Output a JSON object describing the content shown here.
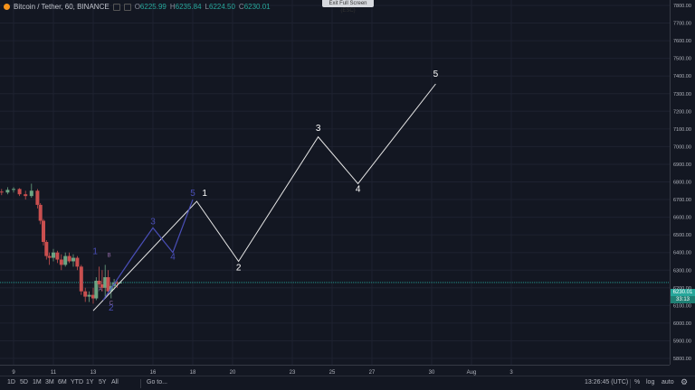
{
  "legend": {
    "symbol": "Bitcoin / Tether, 60, BINANCE",
    "o_label": "O",
    "o_value": "6225.99",
    "h_label": "H",
    "h_value": "6235.84",
    "l_label": "L",
    "l_value": "6224.50",
    "c_label": "C",
    "c_value": "6230.01"
  },
  "exit_fullscreen": "Exit Full Screen (ESC)",
  "price_badges": {
    "last": "6230.01",
    "countdown": "33:13"
  },
  "time_range_buttons": [
    "1D",
    "5D",
    "1M",
    "3M",
    "6M",
    "YTD",
    "1Y",
    "5Y",
    "All"
  ],
  "goto_label": "Go to...",
  "clock": "13:26:45 (UTC)",
  "scale_toggles": {
    "percent": "%",
    "log": "log",
    "auto": "auto"
  },
  "colors": {
    "background": "#131722",
    "up_candle": "#6ba583",
    "down_candle": "#c94f4f",
    "white_waves": "#e6e6e6",
    "blue_waves": "#4a4fb8",
    "price_line": "#26a69a"
  },
  "chart_data": {
    "type": "candlestick",
    "price_axis_ticks": [
      7800,
      7700,
      7600,
      7500,
      7400,
      7300,
      7200,
      7100,
      7000,
      6900,
      6800,
      6700,
      6600,
      6500,
      6400,
      6300,
      6200,
      6100,
      6000,
      5900,
      5800
    ],
    "price_axis_labels": [
      "7800.00",
      "7700.00",
      "7600.00",
      "7500.00",
      "7400.00",
      "7300.00",
      "7200.00",
      "7100.00",
      "7000.00",
      "6900.00",
      "6800.00",
      "6700.00",
      "6600.00",
      "6500.00",
      "6400.00",
      "6300.00",
      "6200.00",
      "6100.00",
      "6000.00",
      "5900.00",
      "5800.00"
    ],
    "time_axis": [
      {
        "label": "9",
        "day": 9
      },
      {
        "label": "11",
        "day": 11
      },
      {
        "label": "13",
        "day": 13
      },
      {
        "label": "16",
        "day": 16
      },
      {
        "label": "18",
        "day": 18
      },
      {
        "label": "20",
        "day": 20
      },
      {
        "label": "23",
        "day": 23
      },
      {
        "label": "25",
        "day": 25
      },
      {
        "label": "27",
        "day": 27
      },
      {
        "label": "30",
        "day": 30
      },
      {
        "label": "Aug",
        "day": 32
      },
      {
        "label": "3",
        "day": 34
      }
    ],
    "ylim": [
      5780,
      7870
    ],
    "last_price": 6230.01,
    "candles": [
      [
        8.1,
        6730,
        6760,
        6720,
        6745
      ],
      [
        8.4,
        6745,
        6760,
        6725,
        6740
      ],
      [
        8.7,
        6740,
        6770,
        6730,
        6755
      ],
      [
        9.0,
        6755,
        6770,
        6740,
        6760
      ],
      [
        9.3,
        6760,
        6765,
        6720,
        6730
      ],
      [
        9.6,
        6730,
        6750,
        6700,
        6720
      ],
      [
        9.9,
        6720,
        6790,
        6710,
        6750
      ],
      [
        10.2,
        6750,
        6760,
        6650,
        6670
      ],
      [
        10.35,
        6670,
        6680,
        6560,
        6580
      ],
      [
        10.5,
        6580,
        6590,
        6440,
        6460
      ],
      [
        10.65,
        6460,
        6470,
        6360,
        6380
      ],
      [
        10.8,
        6380,
        6400,
        6330,
        6370
      ],
      [
        11.0,
        6370,
        6420,
        6350,
        6400
      ],
      [
        11.2,
        6400,
        6410,
        6340,
        6360
      ],
      [
        11.4,
        6360,
        6390,
        6300,
        6330
      ],
      [
        11.6,
        6330,
        6400,
        6320,
        6380
      ],
      [
        11.8,
        6380,
        6400,
        6340,
        6350
      ],
      [
        12.0,
        6350,
        6390,
        6320,
        6370
      ],
      [
        12.2,
        6370,
        6380,
        6300,
        6320
      ],
      [
        12.4,
        6320,
        6330,
        6160,
        6180
      ],
      [
        12.6,
        6180,
        6200,
        6120,
        6150
      ],
      [
        12.8,
        6150,
        6180,
        6120,
        6160
      ],
      [
        13.0,
        6160,
        6200,
        6110,
        6140
      ],
      [
        13.15,
        6140,
        6260,
        6130,
        6240
      ],
      [
        13.3,
        6240,
        6320,
        6200,
        6220
      ],
      [
        13.45,
        6220,
        6300,
        6180,
        6200
      ],
      [
        13.6,
        6200,
        6330,
        6150,
        6260
      ],
      [
        13.75,
        6260,
        6300,
        6160,
        6180
      ],
      [
        13.9,
        6180,
        6230,
        6140,
        6210
      ],
      [
        14.05,
        6210,
        6250,
        6190,
        6230
      ],
      [
        14.2,
        6230,
        6240,
        6200,
        6226
      ],
      [
        14.35,
        6226,
        6236,
        6224,
        6230
      ]
    ],
    "white_wave_points": [
      [
        13.0,
        6070
      ],
      [
        18.2,
        6690
      ],
      [
        20.3,
        6350
      ],
      [
        24.3,
        7055
      ],
      [
        26.3,
        6790
      ],
      [
        30.2,
        7355
      ]
    ],
    "white_wave_labels": [
      {
        "label": "1",
        "day": 18.6,
        "price": 6720
      },
      {
        "label": "2",
        "day": 20.3,
        "price": 6300
      },
      {
        "label": "3",
        "day": 24.3,
        "price": 7090
      },
      {
        "label": "4",
        "day": 26.3,
        "price": 6745
      },
      {
        "label": "5",
        "day": 30.2,
        "price": 7395
      }
    ],
    "blue_wave_points": [
      [
        13.5,
        6130
      ],
      [
        15.0,
        6380
      ],
      [
        16.0,
        6540
      ],
      [
        17.0,
        6400
      ],
      [
        18.0,
        6700
      ]
    ],
    "blue_wave_labels": [
      {
        "label": "3",
        "day": 16.0,
        "price": 6560
      },
      {
        "label": "4",
        "day": 17.0,
        "price": 6360
      },
      {
        "label": "5",
        "day": 18.0,
        "price": 6720
      },
      {
        "label": "1",
        "day": 13.1,
        "price": 6390
      },
      {
        "label": "2",
        "day": 13.9,
        "price": 6070
      }
    ],
    "small_labels": [
      {
        "label": "B",
        "day": 13.8,
        "price": 6375
      },
      {
        "label": "A",
        "day": 13.35,
        "price": 6180
      },
      {
        "label": "C",
        "day": 13.9,
        "price": 6105
      }
    ]
  }
}
